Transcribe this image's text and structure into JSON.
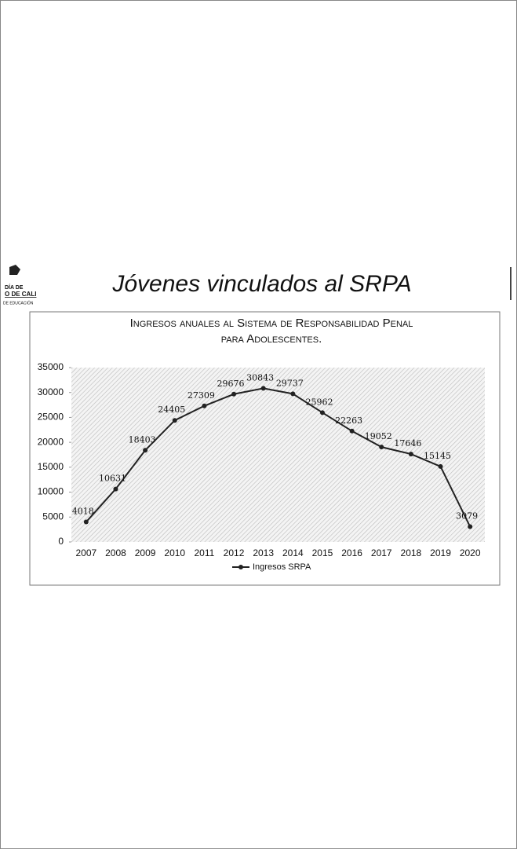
{
  "logo_lines": [
    "DÍA DE",
    "O DE CALI",
    "DE EDUCACIÓN"
  ],
  "heading": "Jóvenes vinculados al SRPA",
  "chart_data": {
    "type": "line",
    "title": [
      "Ingresos anuales al Sistema de Responsabilidad Penal",
      "para Adolescentes."
    ],
    "categories": [
      "2007",
      "2008",
      "2009",
      "2010",
      "2011",
      "2012",
      "2013",
      "2014",
      "2015",
      "2016",
      "2017",
      "2018",
      "2019",
      "2020"
    ],
    "series": [
      {
        "name": "Ingresos SRPA",
        "color": "#222222",
        "values": [
          4018,
          10631,
          18403,
          24405,
          27309,
          29676,
          30843,
          29737,
          25962,
          22263,
          19052,
          17646,
          15145,
          3079
        ]
      }
    ],
    "ylim": [
      0,
      35000
    ],
    "yticks": [
      0,
      5000,
      10000,
      15000,
      20000,
      25000,
      30000,
      35000
    ],
    "legend": "bottom"
  }
}
